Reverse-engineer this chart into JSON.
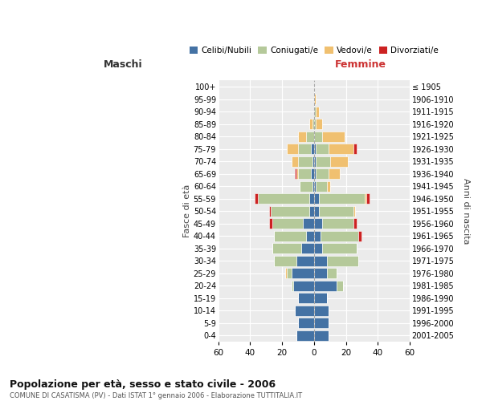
{
  "age_groups": [
    "0-4",
    "5-9",
    "10-14",
    "15-19",
    "20-24",
    "25-29",
    "30-34",
    "35-39",
    "40-44",
    "45-49",
    "50-54",
    "55-59",
    "60-64",
    "65-69",
    "70-74",
    "75-79",
    "80-84",
    "85-89",
    "90-94",
    "95-99",
    "100+"
  ],
  "birth_years": [
    "2001-2005",
    "1996-2000",
    "1991-1995",
    "1986-1990",
    "1981-1985",
    "1976-1980",
    "1971-1975",
    "1966-1970",
    "1961-1965",
    "1956-1960",
    "1951-1955",
    "1946-1950",
    "1941-1945",
    "1936-1940",
    "1931-1935",
    "1926-1930",
    "1921-1925",
    "1916-1920",
    "1911-1915",
    "1906-1910",
    "≤ 1905"
  ],
  "males": {
    "celibi": [
      11,
      10,
      12,
      10,
      13,
      14,
      11,
      8,
      5,
      7,
      3,
      3,
      1,
      2,
      1,
      2,
      0,
      0,
      0,
      0,
      0
    ],
    "coniugati": [
      0,
      0,
      0,
      0,
      1,
      3,
      14,
      18,
      20,
      19,
      24,
      32,
      8,
      8,
      9,
      8,
      5,
      1,
      0,
      0,
      0
    ],
    "vedovi": [
      0,
      0,
      0,
      0,
      0,
      1,
      0,
      0,
      0,
      0,
      0,
      0,
      0,
      1,
      4,
      7,
      5,
      2,
      0,
      0,
      0
    ],
    "divorziati": [
      0,
      0,
      0,
      0,
      0,
      0,
      0,
      0,
      0,
      2,
      1,
      2,
      0,
      1,
      0,
      0,
      0,
      0,
      0,
      0,
      0
    ]
  },
  "females": {
    "nubili": [
      9,
      9,
      9,
      8,
      14,
      8,
      8,
      5,
      4,
      5,
      3,
      3,
      1,
      1,
      1,
      1,
      0,
      0,
      0,
      0,
      0
    ],
    "coniugate": [
      0,
      0,
      0,
      0,
      4,
      6,
      20,
      22,
      24,
      20,
      22,
      29,
      7,
      8,
      9,
      8,
      5,
      1,
      1,
      0,
      0
    ],
    "vedove": [
      0,
      0,
      0,
      0,
      0,
      0,
      0,
      0,
      0,
      0,
      1,
      1,
      2,
      7,
      11,
      16,
      14,
      4,
      2,
      1,
      0
    ],
    "divorziate": [
      0,
      0,
      0,
      0,
      0,
      0,
      0,
      0,
      2,
      2,
      0,
      2,
      0,
      0,
      0,
      2,
      0,
      0,
      0,
      0,
      0
    ]
  },
  "colors": {
    "celibi": "#4472a4",
    "coniugati": "#b5c99a",
    "vedovi": "#f0c070",
    "divorziati": "#cc2222"
  },
  "title": "Popolazione per età, sesso e stato civile - 2006",
  "subtitle": "COMUNE DI CASATISMA (PV) - Dati ISTAT 1° gennaio 2006 - Elaborazione TUTTITALIA.IT",
  "xlabel_left": "Maschi",
  "xlabel_right": "Femmine",
  "ylabel_left": "Fasce di età",
  "ylabel_right": "Anni di nascita",
  "xlim": 60,
  "background_color": "#ffffff",
  "plot_bg": "#ebebeb",
  "grid_color": "#ffffff"
}
